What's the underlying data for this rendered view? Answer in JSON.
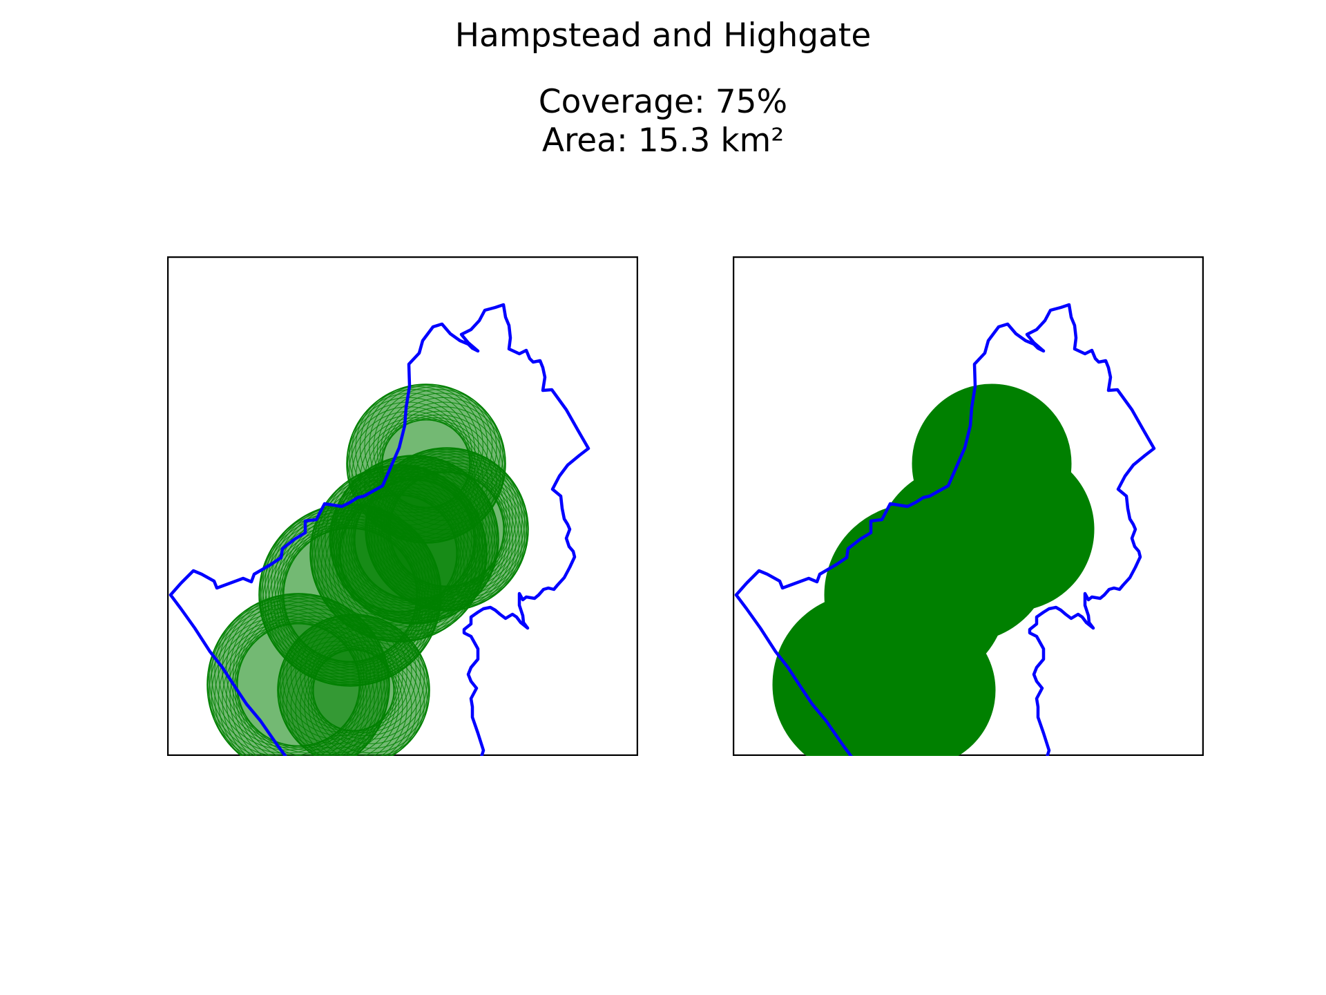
{
  "title": "Hampstead and Highgate",
  "stats": {
    "coverage": "Coverage: 75%",
    "area": "Area: 15.3 km²"
  },
  "colors": {
    "boundary": "#0000ff",
    "coverage": "#008000",
    "frame": "#000000",
    "background": "#ffffff"
  },
  "panels": [
    {
      "name": "left-map-panel",
      "coverage_style": "outlined circles"
    },
    {
      "name": "right-map-panel",
      "coverage_style": "filled circles"
    }
  ]
}
